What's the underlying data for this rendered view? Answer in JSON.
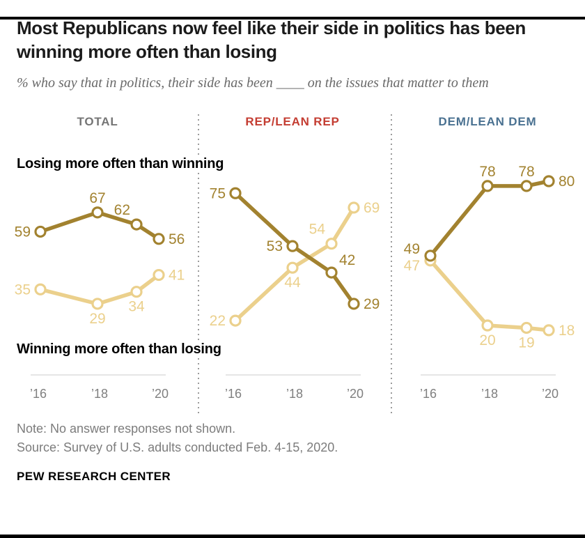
{
  "page": {
    "title": "Most Republicans now feel like their side in politics has been winning more often than losing",
    "subtitle": "% who say that in politics, their side has been ____ on the issues that matter to them",
    "note": "Note: No answer responses not shown.",
    "source": "Source: Survey of U.S. adults conducted Feb. 4-15, 2020.",
    "brand": "PEW RESEARCH CENTER"
  },
  "chart_data": {
    "type": "line",
    "x_survey_years": [
      2016,
      2018,
      2019,
      2020
    ],
    "x_tick_labels": [
      "’16",
      "’18",
      "’20"
    ],
    "x_tick_years": [
      2016,
      2018,
      2020
    ],
    "ylim": [
      10,
      90
    ],
    "grid": false,
    "legend_position": "inline-labels",
    "series_labels": {
      "losing": "Losing more often than winning",
      "winning": "Winning more often than losing"
    },
    "colors": {
      "losing": "#A2822F",
      "winning": "#EBD08C",
      "total_header": "#757575",
      "rep_header": "#C43D32",
      "dem_header": "#4A7191",
      "axis": "#cbcbcb",
      "tick": "#7f7f7f"
    },
    "panels": [
      {
        "id": "total",
        "header": "TOTAL",
        "header_color_key": "total_header",
        "series": [
          {
            "key": "winning",
            "name": "Winning more often than losing",
            "values": [
              35,
              29,
              34,
              41
            ],
            "label_pos": [
              "l",
              "b",
              "b",
              "r"
            ]
          },
          {
            "key": "losing",
            "name": "Losing more often than winning",
            "values": [
              59,
              67,
              62,
              56
            ],
            "label_pos": [
              "l",
              "t",
              "tl",
              "r"
            ]
          }
        ]
      },
      {
        "id": "rep",
        "header": "REP/LEAN REP",
        "header_color_key": "rep_header",
        "series": [
          {
            "key": "winning",
            "name": "Winning more often than losing",
            "values": [
              22,
              44,
              54,
              69
            ],
            "label_pos": [
              "l",
              "b",
              "tl",
              "r"
            ]
          },
          {
            "key": "losing",
            "name": "Losing more often than winning",
            "values": [
              75,
              53,
              42,
              29
            ],
            "label_pos": [
              "l",
              "l",
              "tr",
              "r"
            ]
          }
        ]
      },
      {
        "id": "dem",
        "header": "DEM/LEAN DEM",
        "header_color_key": "dem_header",
        "series": [
          {
            "key": "winning",
            "name": "Winning more often than losing",
            "values": [
              47,
              20,
              19,
              18
            ],
            "label_pos": [
              "ld",
              "b",
              "b",
              "r"
            ]
          },
          {
            "key": "losing",
            "name": "Losing more often than winning",
            "values": [
              49,
              78,
              78,
              80
            ],
            "label_pos": [
              "lu",
              "t",
              "t",
              "r"
            ]
          }
        ]
      }
    ]
  }
}
